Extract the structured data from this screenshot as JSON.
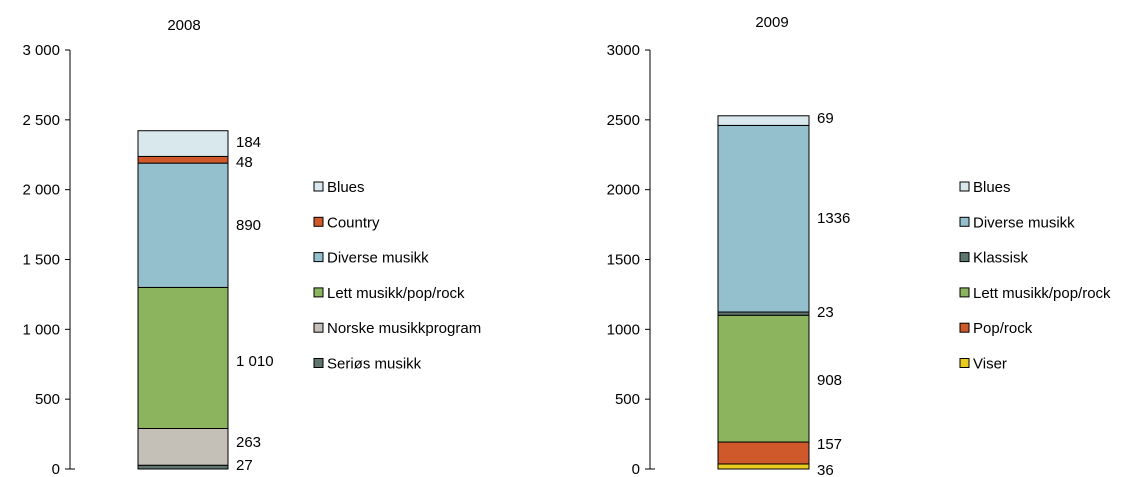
{
  "chart_data": [
    {
      "type": "bar",
      "stacked": true,
      "title": "2008",
      "ylim": [
        0,
        3000
      ],
      "yticks": [
        0,
        500,
        1000,
        1500,
        2000,
        2500,
        3000
      ],
      "ytick_labels": [
        "0",
        "500",
        "1 000",
        "1 500",
        "2 000",
        "2 500",
        "3 000"
      ],
      "series": [
        {
          "name": "Seriøs musikk",
          "value": 27,
          "label": "27",
          "color": "#5f7670"
        },
        {
          "name": "Norske musikkprogram",
          "value": 263,
          "label": "263",
          "color": "#c4bfb7"
        },
        {
          "name": "Lett musikk/pop/rock",
          "value": 1010,
          "label": "1 010",
          "color": "#8cb35e"
        },
        {
          "name": "Diverse musikk",
          "value": 890,
          "label": "890",
          "color": "#93c0cc"
        },
        {
          "name": "Country",
          "value": 48,
          "label": "48",
          "color": "#d0592b"
        },
        {
          "name": "Blues",
          "value": 184,
          "label": "184",
          "color": "#d8e8ec"
        }
      ],
      "legend": [
        "Blues",
        "Country",
        "Diverse musikk",
        "Lett musikk/pop/rock",
        "Norske musikkprogram",
        "Seriøs musikk"
      ]
    },
    {
      "type": "bar",
      "stacked": true,
      "title": "2009",
      "ylim": [
        0,
        3000
      ],
      "yticks": [
        0,
        500,
        1000,
        1500,
        2000,
        2500,
        3000
      ],
      "ytick_labels": [
        "0",
        "500",
        "1000",
        "1500",
        "2000",
        "2500",
        "3000"
      ],
      "series": [
        {
          "name": "Viser",
          "value": 36,
          "label": "36",
          "color": "#e8cb1e"
        },
        {
          "name": "Pop/rock",
          "value": 157,
          "label": "157",
          "color": "#d0592b"
        },
        {
          "name": "Lett musikk/pop/rock",
          "value": 908,
          "label": "908",
          "color": "#8cb35e"
        },
        {
          "name": "Klassisk",
          "value": 23,
          "label": "23",
          "color": "#5f7670"
        },
        {
          "name": "Diverse musikk",
          "value": 1336,
          "label": "1336",
          "color": "#93c0cc"
        },
        {
          "name": "Blues",
          "value": 69,
          "label": "69",
          "color": "#d8e8ec"
        }
      ],
      "legend": [
        "Blues",
        "Diverse musikk",
        "Klassisk",
        "Lett musikk/pop/rock",
        "Pop/rock",
        "Viser"
      ]
    }
  ]
}
